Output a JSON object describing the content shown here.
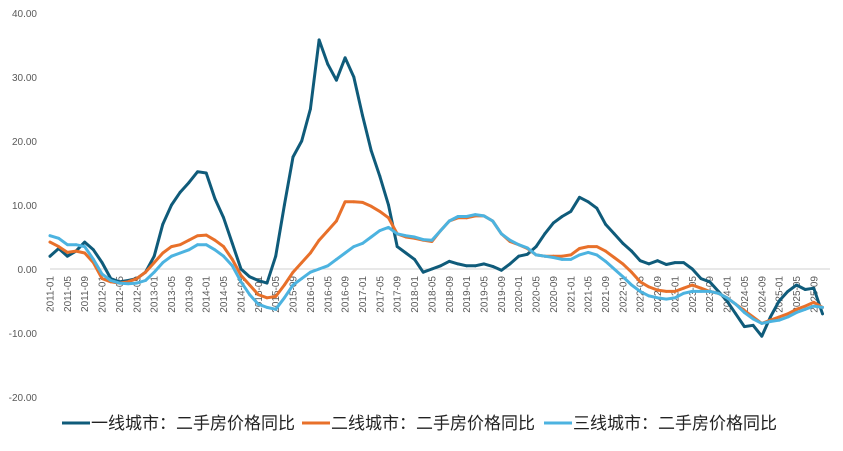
{
  "chart_data": {
    "type": "line",
    "title": "",
    "xlabel": "",
    "ylabel": "",
    "ylim": [
      -20,
      40
    ],
    "yticks": [
      "40.00",
      "30.00",
      "20.00",
      "10.00",
      "0.00",
      "-10.00",
      "-20.00"
    ],
    "ytick_values": [
      40,
      30,
      20,
      10,
      0,
      -10,
      -20
    ],
    "x_start": "2011-01",
    "x_step_months": 2,
    "xtick_labels": [
      "2011-01",
      "2011-05",
      "2011-09",
      "2012-01",
      "2012-05",
      "2012-09",
      "2013-01",
      "2013-05",
      "2013-09",
      "2014-01",
      "2014-05",
      "2014-09",
      "2015-01",
      "2015-05",
      "2015-09",
      "2016-01",
      "2016-05",
      "2016-09",
      "2017-01",
      "2017-05",
      "2017-09",
      "2018-01",
      "2018-05",
      "2018-09",
      "2019-01",
      "2019-05",
      "2019-09",
      "2020-01",
      "2020-05",
      "2020-09",
      "2021-01",
      "2021-05",
      "2021-09",
      "2022-01",
      "2022-05",
      "2022-09",
      "2023-01",
      "2023-05",
      "2023-09",
      "2024-01",
      "2024-05",
      "2024-09",
      "2025-01",
      "2025-05",
      "2025-09"
    ],
    "grid": false,
    "legend_position": "bottom",
    "series": [
      {
        "name": "一线城市：二手房价格同比",
        "color": "#0f5b7a",
        "values": [
          2,
          3.2,
          2,
          2.8,
          4.2,
          3,
          1,
          -1.5,
          -2,
          -1.8,
          -1.5,
          -0.5,
          2,
          7,
          10,
          12,
          13.5,
          15.2,
          15,
          11,
          8,
          4,
          0,
          -1.2,
          -1.8,
          -2.2,
          2,
          10,
          17.5,
          20,
          25,
          35.8,
          32,
          29.5,
          33,
          30,
          24,
          18.5,
          14.5,
          10,
          3.5,
          2.5,
          1.5,
          -0.5,
          0,
          0.5,
          1.2,
          0.8,
          0.5,
          0.5,
          0.8,
          0.4,
          -0.2,
          0.8,
          2,
          2.3,
          3.5,
          5.5,
          7.2,
          8.2,
          9,
          11.2,
          10.5,
          9.5,
          7,
          5.5,
          4,
          2.8,
          1.3,
          0.8,
          1.3,
          0.7,
          1,
          1,
          0,
          -1.5,
          -2,
          -3.5,
          -5,
          -7,
          -9,
          -8.8,
          -10.5,
          -7.5,
          -5,
          -3.5,
          -2.5,
          -3.2,
          -3,
          -7
        ]
      },
      {
        "name": "二线城市：二手房价格同比",
        "color": "#e8702a",
        "values": [
          4.2,
          3.5,
          2.6,
          2.8,
          2.5,
          1,
          -1.5,
          -2,
          -2.2,
          -2,
          -1.5,
          -0.5,
          1,
          2.5,
          3.5,
          3.8,
          4.5,
          5.2,
          5.3,
          4.5,
          3.5,
          1.5,
          -1,
          -2.5,
          -4,
          -4.5,
          -4.3,
          -2.5,
          -0.5,
          1,
          2.5,
          4.5,
          6,
          7.5,
          10.5,
          10.5,
          10.4,
          9.8,
          9,
          8,
          5.5,
          5,
          4.8,
          4.5,
          4.3,
          6,
          7.5,
          8,
          8,
          8.3,
          8.3,
          7.5,
          5.5,
          4.3,
          3.8,
          3.2,
          2.2,
          2,
          2,
          2,
          2.2,
          3.2,
          3.5,
          3.5,
          2.8,
          1.8,
          0.8,
          -0.5,
          -2,
          -2.8,
          -3.3,
          -3.5,
          -3.5,
          -3,
          -2.5,
          -3,
          -3.5,
          -3.8,
          -4.5,
          -5.5,
          -6.5,
          -7.5,
          -8.5,
          -8,
          -7.5,
          -7,
          -6.3,
          -5.8,
          -5.2,
          -6
        ]
      },
      {
        "name": "三线城市：二手房价格同比",
        "color": "#4cb3e0",
        "values": [
          5.2,
          4.8,
          3.8,
          3.8,
          3.5,
          1.5,
          -0.8,
          -1.8,
          -2.2,
          -2.3,
          -2.2,
          -1.8,
          -0.5,
          1,
          2,
          2.5,
          3,
          3.8,
          3.8,
          3,
          2,
          0.5,
          -2,
          -4,
          -5.5,
          -6,
          -6.3,
          -4.5,
          -2.5,
          -1.5,
          -0.5,
          0,
          0.5,
          1.5,
          2.5,
          3.5,
          4,
          5,
          6,
          6.5,
          5.5,
          5.2,
          5,
          4.6,
          4.5,
          6,
          7.5,
          8.2,
          8.2,
          8.5,
          8.3,
          7.5,
          5.5,
          4.5,
          3.8,
          3.3,
          2.2,
          2,
          1.8,
          1.5,
          1.5,
          2.2,
          2.6,
          2.2,
          1.2,
          0,
          -1.2,
          -2.5,
          -3.5,
          -4.2,
          -4.5,
          -4.7,
          -4.5,
          -3.8,
          -3.5,
          -3.5,
          -3.5,
          -3.8,
          -4.5,
          -5.5,
          -6.8,
          -7.8,
          -8.5,
          -8.2,
          -8,
          -7.5,
          -6.8,
          -6.3,
          -5.8,
          -6
        ]
      }
    ]
  }
}
